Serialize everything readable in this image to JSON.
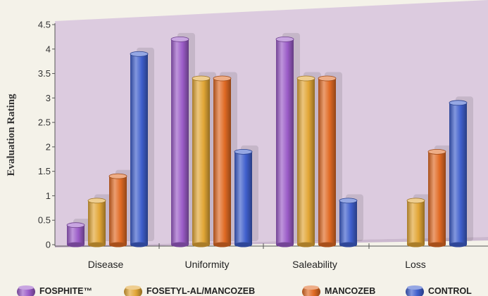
{
  "chart_data": {
    "type": "bar",
    "ylabel": "Evaluation Rating",
    "xlabel": "",
    "ylim": [
      0,
      4.5
    ],
    "yticks": [
      0,
      0.5,
      1,
      1.5,
      2,
      2.5,
      3,
      3.5,
      4,
      4.5
    ],
    "ytick_labels": [
      "0",
      "0.5",
      "1",
      "1.5",
      "2",
      "2.5",
      "3",
      "3.5",
      "4",
      "4.5"
    ],
    "categories": [
      "Disease",
      "Uniformity",
      "Saleability",
      "Loss"
    ],
    "legend_position": "bottom",
    "series": [
      {
        "name": "FOSPHITE™",
        "color": "#9b5cc8",
        "values": [
          0.4,
          4.2,
          4.2,
          null
        ]
      },
      {
        "name": "FOSETYL-AL/MANCOZEB",
        "color": "#e2a636",
        "values": [
          0.9,
          3.4,
          3.4,
          0.9
        ]
      },
      {
        "name": "MANCOZEB",
        "color": "#e06a24",
        "values": [
          1.4,
          3.4,
          3.4,
          1.9
        ]
      },
      {
        "name": "CONTROL",
        "color": "#3f5fcc",
        "values": [
          3.9,
          1.9,
          0.9,
          2.9
        ]
      }
    ]
  }
}
